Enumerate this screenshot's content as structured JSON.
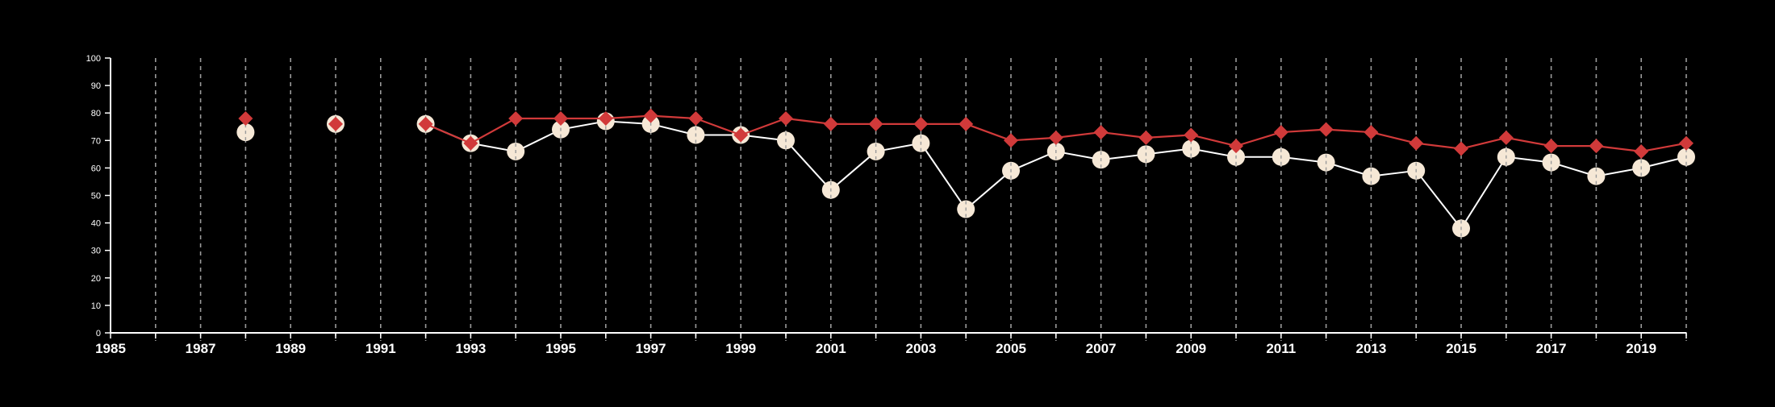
{
  "chart_data": {
    "type": "line",
    "title": "",
    "xlabel": "",
    "ylabel": "",
    "xlim": [
      1985,
      2020
    ],
    "ylim": [
      0,
      100
    ],
    "x_ticks": [
      "1985",
      "1987",
      "1989",
      "1991",
      "1993",
      "1995",
      "1997",
      "1999",
      "2001",
      "2003",
      "2005",
      "2007",
      "2009",
      "2011",
      "2013",
      "2015",
      "2017",
      "2019"
    ],
    "y_ticks": [
      "0",
      "10",
      "20",
      "30",
      "40",
      "50",
      "60",
      "70",
      "80",
      "90",
      "100"
    ],
    "grid": "vertical dashed at every year",
    "legend": "none",
    "colors": {
      "background": "#000000",
      "axis": "#ffffff",
      "grid": "#9a9a9a",
      "white_series_line": "#ffffff",
      "white_series_marker": "#f6e8d6",
      "red_series": "#d13a3a"
    },
    "series": [
      {
        "marker": "circle",
        "color": "#f6e8d6",
        "x": [
          1988,
          1990,
          1992,
          1993,
          1994,
          1995,
          1996,
          1997,
          1998,
          1999,
          2000,
          2001,
          2002,
          2003,
          2004,
          2005,
          2006,
          2007,
          2008,
          2009,
          2010,
          2011,
          2012,
          2013,
          2014,
          2015,
          2016,
          2017,
          2018,
          2019,
          2020
        ],
        "values": [
          73,
          76,
          76,
          69,
          66,
          74,
          77,
          76,
          72,
          72,
          70,
          52,
          66,
          69,
          45,
          59,
          66,
          63,
          65,
          67,
          64,
          64,
          62,
          57,
          59,
          38,
          64,
          62,
          57,
          60,
          64
        ]
      },
      {
        "marker": "diamond",
        "color": "#d13a3a",
        "x": [
          1988,
          1990,
          1992,
          1993,
          1994,
          1995,
          1996,
          1997,
          1998,
          1999,
          2000,
          2001,
          2002,
          2003,
          2004,
          2005,
          2006,
          2007,
          2008,
          2009,
          2010,
          2011,
          2012,
          2013,
          2014,
          2015,
          2016,
          2017,
          2018,
          2019,
          2020
        ],
        "values": [
          78,
          76,
          76,
          69,
          78,
          78,
          78,
          79,
          78,
          72,
          78,
          76,
          76,
          76,
          76,
          70,
          71,
          73,
          71,
          72,
          68,
          73,
          74,
          73,
          69,
          67,
          71,
          68,
          68,
          66,
          69
        ]
      }
    ]
  }
}
